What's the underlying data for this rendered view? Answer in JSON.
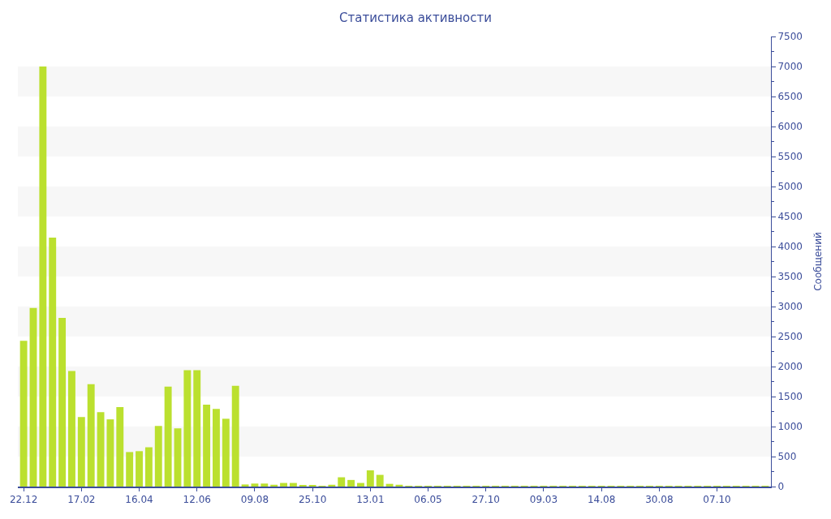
{
  "chart_data": {
    "type": "bar",
    "title": "Статистика активности",
    "ylabel": "Сообщений",
    "categories": [
      "22.12",
      null,
      null,
      null,
      null,
      null,
      "17.02",
      null,
      null,
      null,
      null,
      null,
      "16.04",
      null,
      null,
      null,
      null,
      null,
      "12.06",
      null,
      null,
      null,
      null,
      null,
      "09.08",
      null,
      null,
      null,
      null,
      null,
      "25.10",
      null,
      null,
      null,
      null,
      null,
      "13.01",
      null,
      null,
      null,
      null,
      null,
      "06.05",
      null,
      null,
      null,
      null,
      null,
      "27.10",
      null,
      null,
      null,
      null,
      null,
      "09.03",
      null,
      null,
      null,
      null,
      null,
      "14.08",
      null,
      null,
      null,
      null,
      null,
      "30.08",
      null,
      null,
      null,
      null,
      null,
      "07.10",
      null,
      null,
      null,
      null,
      null
    ],
    "values": [
      2430,
      2975,
      7000,
      4150,
      2810,
      1925,
      1160,
      1705,
      1240,
      1120,
      1325,
      575,
      590,
      655,
      1010,
      1665,
      970,
      1940,
      1940,
      1365,
      1295,
      1130,
      1680,
      35,
      50,
      50,
      30,
      60,
      60,
      20,
      15,
      10,
      30,
      155,
      110,
      60,
      270,
      195,
      45,
      30,
      10,
      10,
      10,
      10,
      10,
      10,
      10,
      10,
      10,
      10,
      10,
      10,
      10,
      10,
      10,
      10,
      10,
      10,
      10,
      10,
      10,
      10,
      10,
      10,
      10,
      10,
      10,
      10,
      10,
      10,
      10,
      10,
      10,
      10,
      10,
      10,
      10,
      10
    ],
    "color": "#bbe02f",
    "ylim": [
      0,
      7500
    ],
    "yticks": [
      0,
      500,
      1000,
      1500,
      2000,
      2500,
      3000,
      3500,
      4000,
      4500,
      5000,
      5500,
      6000,
      6500,
      7000,
      7500
    ],
    "bands": [
      {
        "axis": "y",
        "from": 500,
        "to": 1000,
        "color": "#f7f7f7"
      },
      {
        "axis": "y",
        "from": 1500,
        "to": 2000,
        "color": "#f7f7f7"
      },
      {
        "axis": "y",
        "from": 2500,
        "to": 3000,
        "color": "#f7f7f7"
      },
      {
        "axis": "y",
        "from": 3500,
        "to": 4000,
        "color": "#f7f7f7"
      },
      {
        "axis": "y",
        "from": 4500,
        "to": 5000,
        "color": "#f7f7f7"
      },
      {
        "axis": "y",
        "from": 5500,
        "to": 6000,
        "color": "#f7f7f7"
      },
      {
        "axis": "y",
        "from": 6500,
        "to": 7000,
        "color": "#f7f7f7"
      }
    ]
  }
}
